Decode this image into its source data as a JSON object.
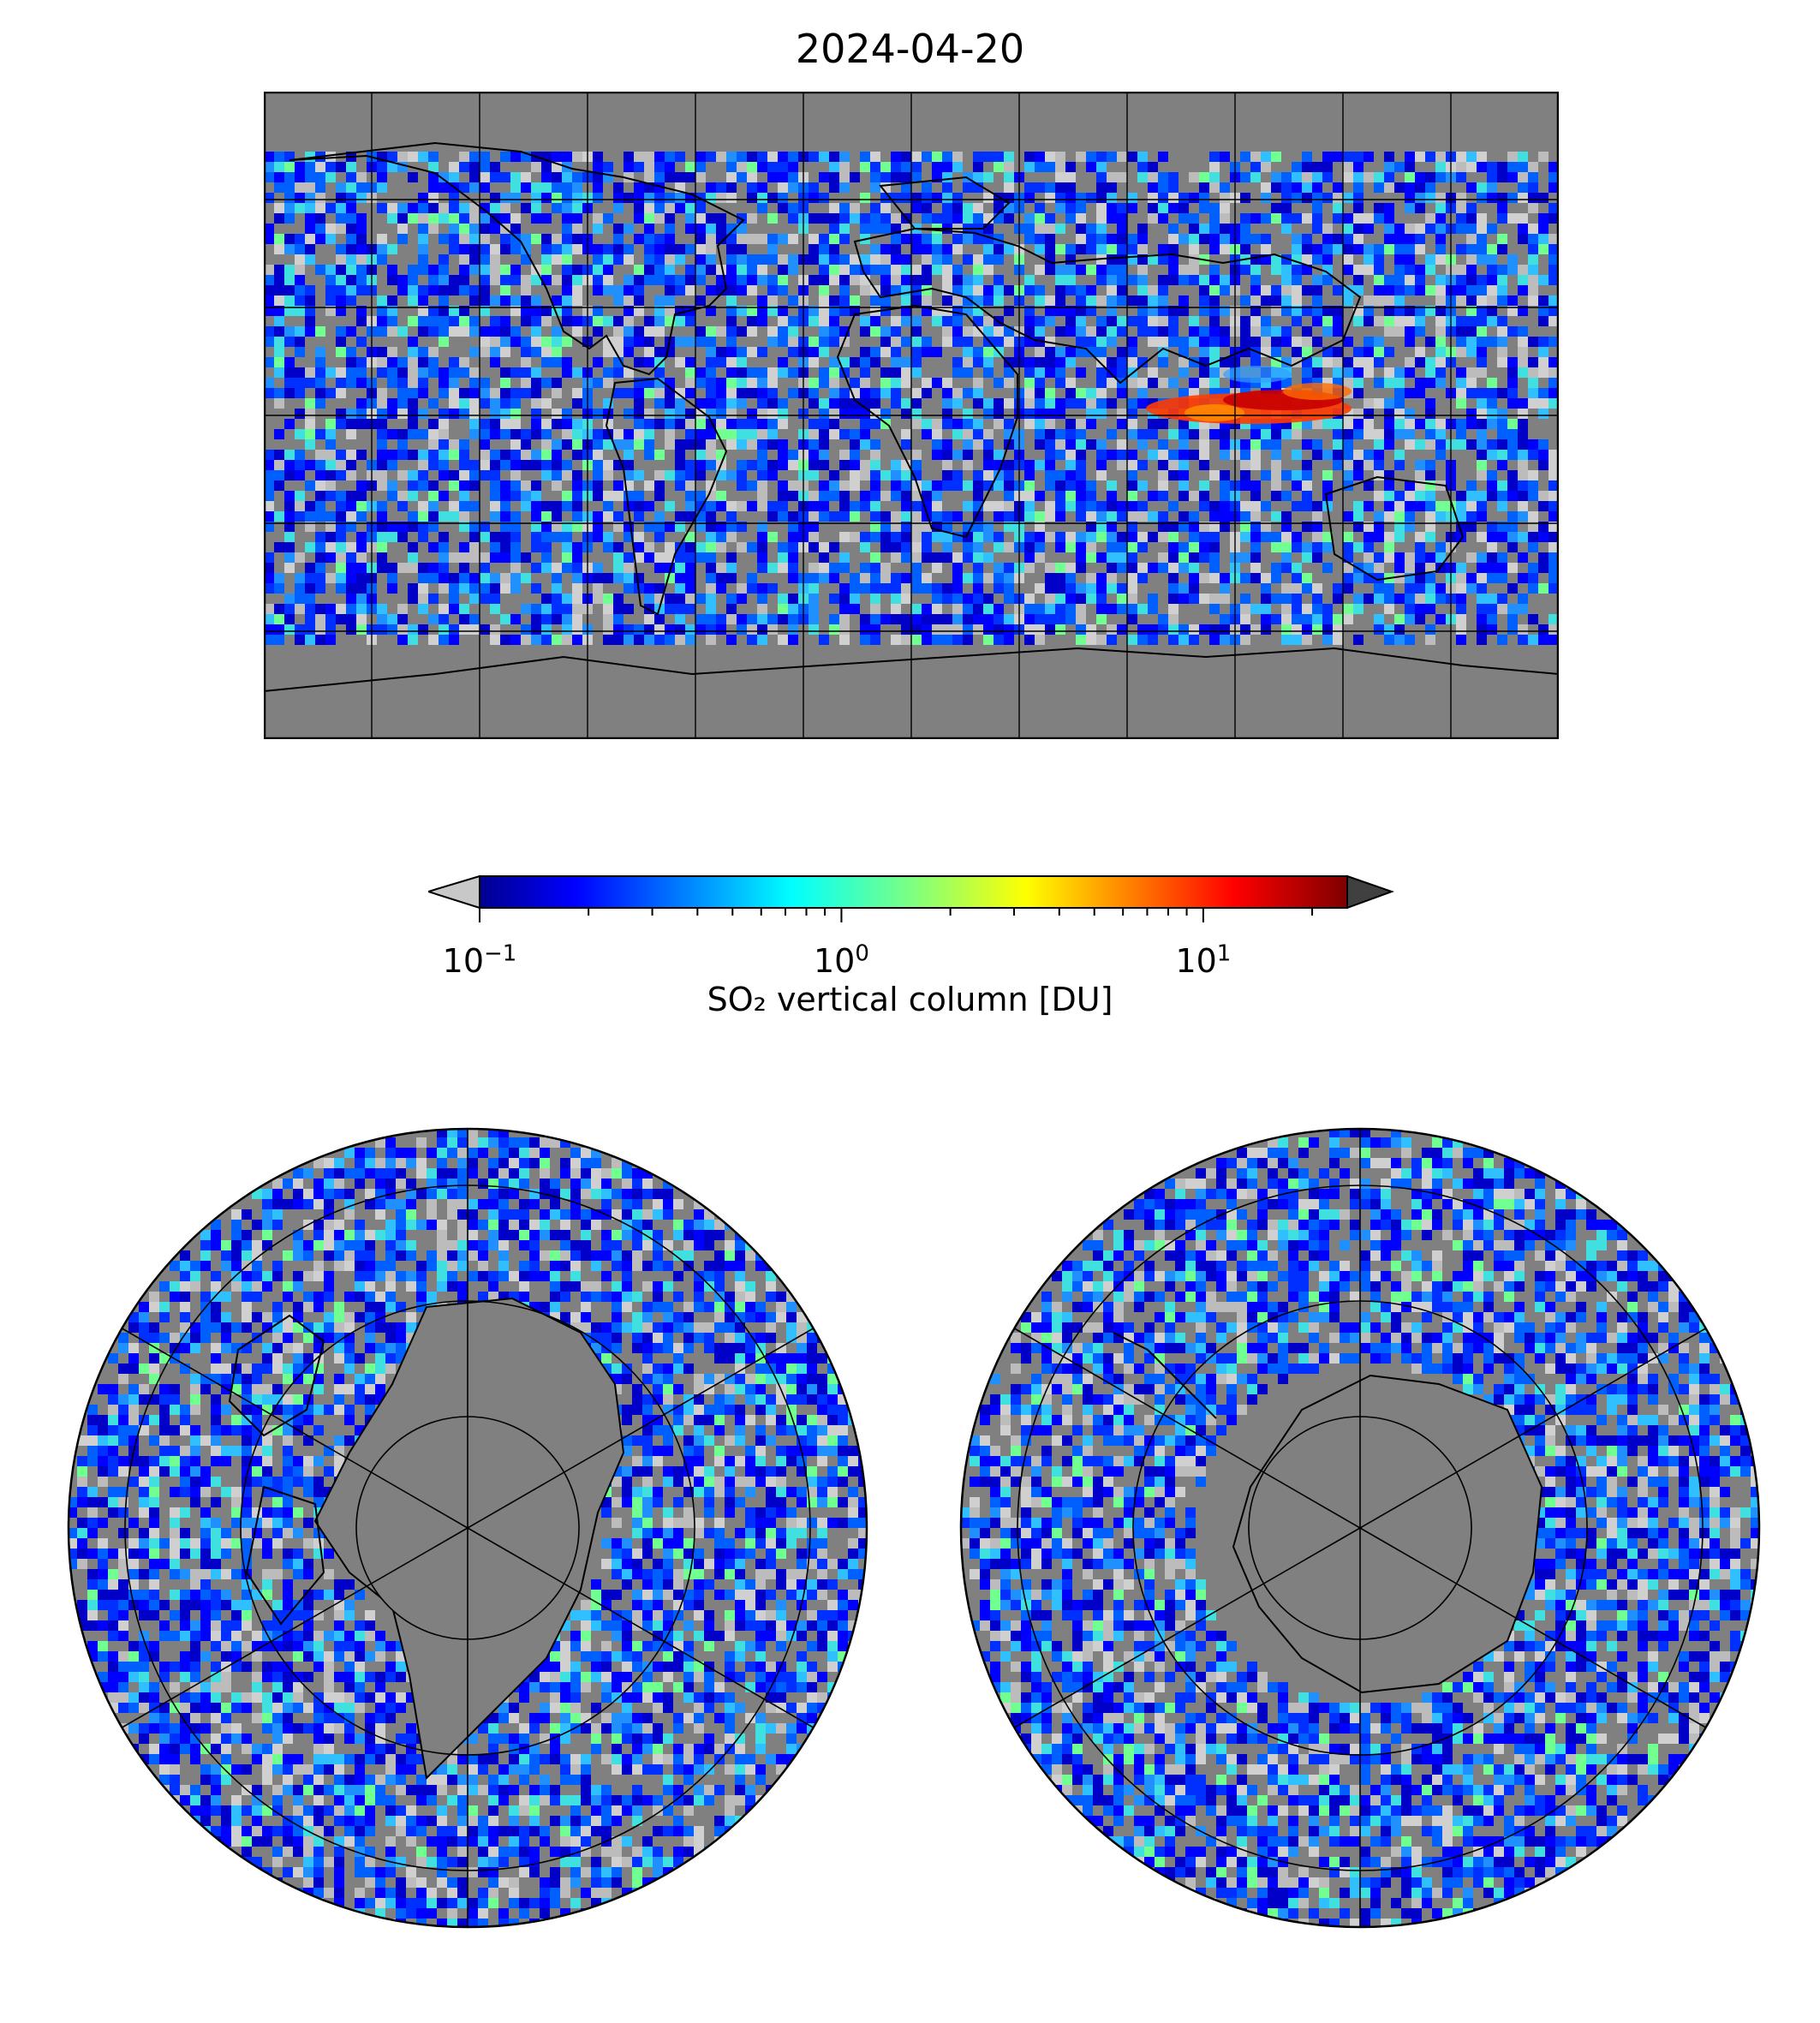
{
  "title": "2024-04-20",
  "colorbar": {
    "label": "SO₂ vertical column [DU]",
    "scale": "log",
    "colormap": "jet",
    "range": [
      0.1,
      25
    ],
    "ticks": [
      {
        "base": "10",
        "exp": "−1",
        "value": 0.1
      },
      {
        "base": "10",
        "exp": "0",
        "value": 1
      },
      {
        "base": "10",
        "exp": "1",
        "value": 10
      }
    ],
    "under_color": "#c8c8c8",
    "over_color": "#404040"
  },
  "colors": {
    "no_data": "#808080",
    "low_values": "#bcbcbc",
    "coastline": "#000000"
  },
  "maps": [
    {
      "name": "world-plate-carree"
    },
    {
      "name": "north-polar-stereographic"
    },
    {
      "name": "south-polar-stereographic"
    }
  ]
}
